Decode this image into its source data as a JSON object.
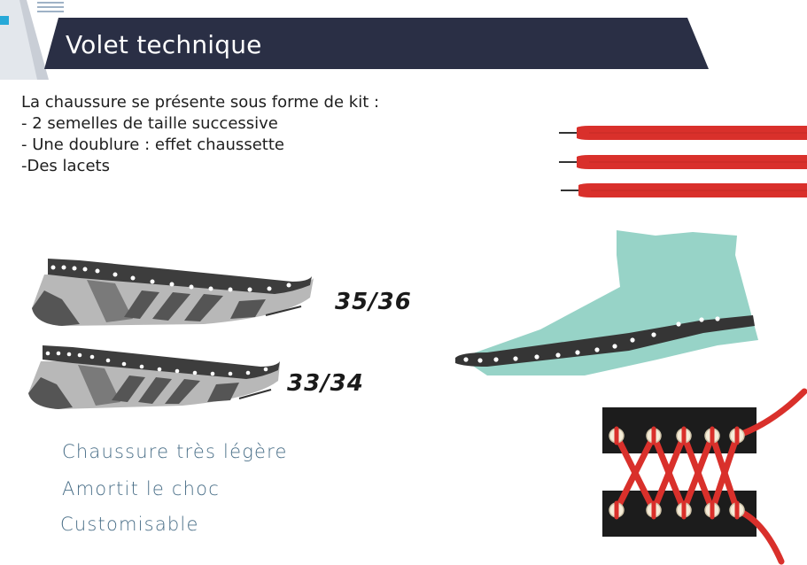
{
  "header": {
    "title": "Volet technique"
  },
  "intro": {
    "lines": [
      "La chaussure se présente sous forme de kit :",
      "- 2 semelles de taille successive",
      "- Une doublure : effet chaussette",
      "-Des lacets"
    ]
  },
  "soles": [
    {
      "size": "35/36"
    },
    {
      "size": "33/34"
    }
  ],
  "features": [
    "Chaussure très légère",
    "Amortit le choc",
    "Customisable"
  ],
  "colors": {
    "banner": "#2a2f45",
    "lace": "#d9302b",
    "sock": "#97d3c7",
    "sole_dark": "#3d3d3d",
    "sole_light": "#b8b8b8",
    "feature_text": "#4a6f88"
  }
}
